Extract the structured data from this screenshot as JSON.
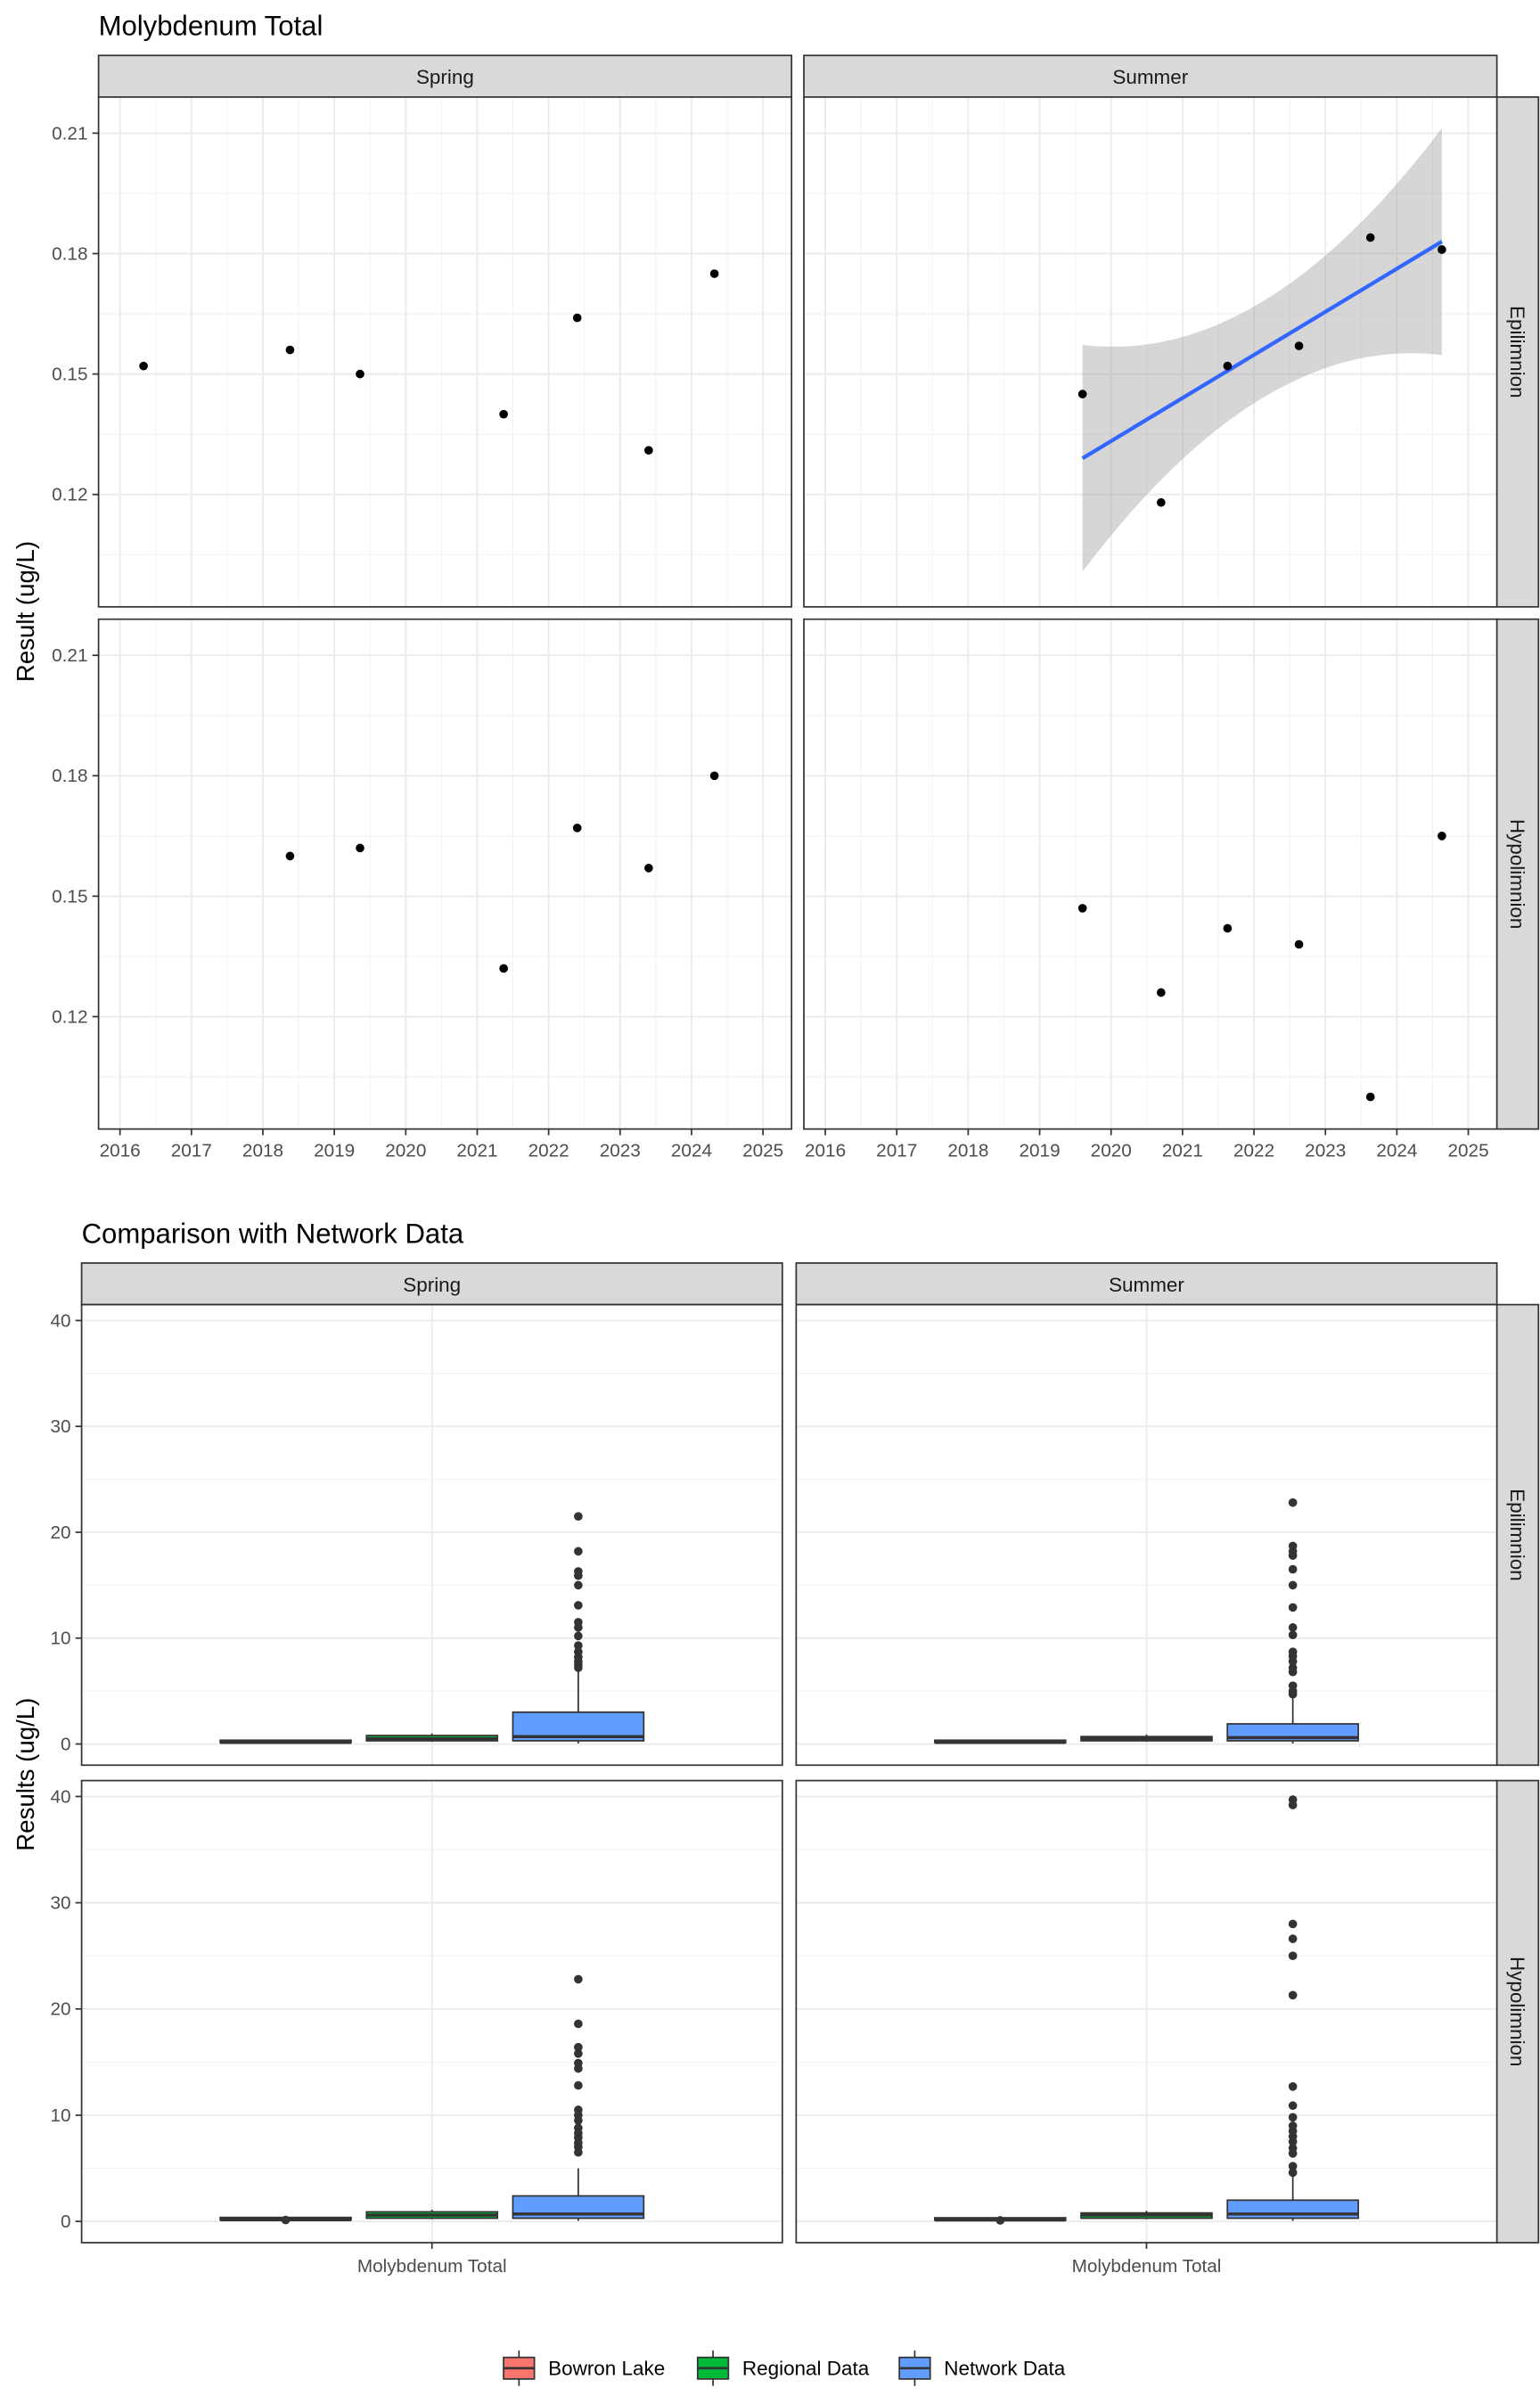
{
  "chart_data": [
    {
      "type": "scatter",
      "title": "Molybdenum Total",
      "ylabel": "Result (ug/L)",
      "xlabel": "",
      "col_facets": [
        "Spring",
        "Summer"
      ],
      "row_facets": [
        "Epilimnion",
        "Hypolimnion"
      ],
      "x_ticks": [
        "2016",
        "2017",
        "2018",
        "2019",
        "2020",
        "2021",
        "2022",
        "2023",
        "2024",
        "2025"
      ],
      "y_ticks": [
        "0.12",
        "0.15",
        "0.18",
        "0.21"
      ],
      "xlim": [
        2015.7,
        2025.4
      ],
      "ylim": [
        0.092,
        0.219
      ],
      "grid": true,
      "panels": [
        {
          "col": "Spring",
          "row": "Epilimnion",
          "points": [
            [
              2016.33,
              0.152
            ],
            [
              2018.38,
              0.156
            ],
            [
              2019.36,
              0.15
            ],
            [
              2021.37,
              0.14
            ],
            [
              2022.4,
              0.164
            ],
            [
              2023.4,
              0.131
            ],
            [
              2024.32,
              0.175
            ]
          ]
        },
        {
          "col": "Summer",
          "row": "Epilimnion",
          "points": [
            [
              2019.6,
              0.145
            ],
            [
              2020.7,
              0.118
            ],
            [
              2021.63,
              0.152
            ],
            [
              2022.63,
              0.157
            ],
            [
              2023.63,
              0.184
            ],
            [
              2024.63,
              0.181
            ]
          ],
          "trend": {
            "method": "linear",
            "x": [
              2019.6,
              2024.63
            ],
            "y": [
              0.129,
              0.183
            ],
            "ci_lower": [
              0.107,
              0.153
            ],
            "ci_upper": [
              0.159,
              0.214
            ]
          }
        },
        {
          "col": "Spring",
          "row": "Hypolimnion",
          "points": [
            [
              2018.38,
              0.16
            ],
            [
              2019.36,
              0.162
            ],
            [
              2021.37,
              0.132
            ],
            [
              2022.4,
              0.167
            ],
            [
              2023.4,
              0.157
            ],
            [
              2024.32,
              0.18
            ]
          ]
        },
        {
          "col": "Summer",
          "row": "Hypolimnion",
          "points": [
            [
              2019.6,
              0.147
            ],
            [
              2020.7,
              0.126
            ],
            [
              2021.63,
              0.142
            ],
            [
              2022.63,
              0.138
            ],
            [
              2023.63,
              0.1
            ],
            [
              2024.63,
              0.165
            ]
          ]
        }
      ],
      "colors": {
        "points": "#000000",
        "trend_line": "#3366ff",
        "ci_band": "#999999"
      }
    },
    {
      "type": "box",
      "title": "Comparison with Network Data",
      "ylabel": "Results (ug/L)",
      "category": "Molybdenum Total",
      "col_facets": [
        "Spring",
        "Summer"
      ],
      "row_facets": [
        "Epilimnion",
        "Hypolimnion"
      ],
      "y_ticks": [
        "0",
        "10",
        "20",
        "30",
        "40"
      ],
      "ylim": [
        -2,
        41.5
      ],
      "grid": true,
      "legend": {
        "position": "bottom",
        "entries": [
          {
            "name": "Bowron Lake",
            "color": "#f8766d"
          },
          {
            "name": "Regional Data",
            "color": "#00ba38"
          },
          {
            "name": "Network Data",
            "color": "#619cff"
          }
        ]
      },
      "panels": [
        {
          "col": "Spring",
          "row": "Epilimnion",
          "boxes": [
            {
              "series": "Bowron Lake",
              "min": 0.13,
              "q1": 0.14,
              "median": 0.15,
              "q3": 0.16,
              "max": 0.175
            },
            {
              "series": "Regional Data",
              "min": 0.2,
              "q1": 0.3,
              "median": 0.5,
              "q3": 0.8,
              "max": 1.0
            },
            {
              "series": "Network Data",
              "min": 0.05,
              "q1": 0.3,
              "median": 0.7,
              "q3": 3.0,
              "max": 7.0,
              "outliers": [
                7.2,
                7.5,
                7.8,
                8.2,
                8.7,
                9.3,
                10.2,
                11.0,
                11.5,
                13.1,
                15.0,
                15.9,
                16.3,
                18.2,
                21.5
              ]
            }
          ]
        },
        {
          "col": "Summer",
          "row": "Epilimnion",
          "boxes": [
            {
              "series": "Bowron Lake",
              "min": 0.118,
              "q1": 0.14,
              "median": 0.15,
              "q3": 0.16,
              "max": 0.184
            },
            {
              "series": "Regional Data",
              "min": 0.2,
              "q1": 0.3,
              "median": 0.5,
              "q3": 0.7,
              "max": 0.9
            },
            {
              "series": "Network Data",
              "min": 0.05,
              "q1": 0.3,
              "median": 0.6,
              "q3": 1.9,
              "max": 4.5,
              "outliers": [
                4.7,
                5.0,
                5.5,
                6.8,
                7.2,
                7.8,
                8.3,
                8.7,
                10.3,
                11.0,
                12.9,
                15.0,
                16.5,
                17.8,
                18.2,
                18.7,
                22.8
              ]
            }
          ]
        },
        {
          "col": "Spring",
          "row": "Hypolimnion",
          "boxes": [
            {
              "series": "Bowron Lake",
              "min": 0.13,
              "q1": 0.155,
              "median": 0.16,
              "q3": 0.165,
              "max": 0.18,
              "outliers": [
                0.132
              ]
            },
            {
              "series": "Regional Data",
              "min": 0.2,
              "q1": 0.3,
              "median": 0.6,
              "q3": 0.9,
              "max": 1.1
            },
            {
              "series": "Network Data",
              "min": 0.05,
              "q1": 0.3,
              "median": 0.7,
              "q3": 2.4,
              "max": 5.0,
              "outliers": [
                6.5,
                7.0,
                7.4,
                7.9,
                8.3,
                8.8,
                9.5,
                10.0,
                10.5,
                12.8,
                14.4,
                14.9,
                15.8,
                16.4,
                18.6,
                22.8
              ]
            }
          ]
        },
        {
          "col": "Summer",
          "row": "Hypolimnion",
          "boxes": [
            {
              "series": "Bowron Lake",
              "min": 0.1,
              "q1": 0.126,
              "median": 0.14,
              "q3": 0.147,
              "max": 0.165,
              "outliers": [
                0.1
              ]
            },
            {
              "series": "Regional Data",
              "min": 0.2,
              "q1": 0.3,
              "median": 0.6,
              "q3": 0.8,
              "max": 1.0
            },
            {
              "series": "Network Data",
              "min": 0.05,
              "q1": 0.3,
              "median": 0.7,
              "q3": 2.0,
              "max": 4.3,
              "outliers": [
                4.6,
                5.2,
                6.4,
                6.9,
                7.5,
                8.0,
                8.5,
                9.0,
                9.8,
                10.9,
                12.7,
                21.3,
                25.0,
                26.6,
                28.0,
                39.2,
                39.7
              ]
            }
          ]
        }
      ]
    }
  ]
}
